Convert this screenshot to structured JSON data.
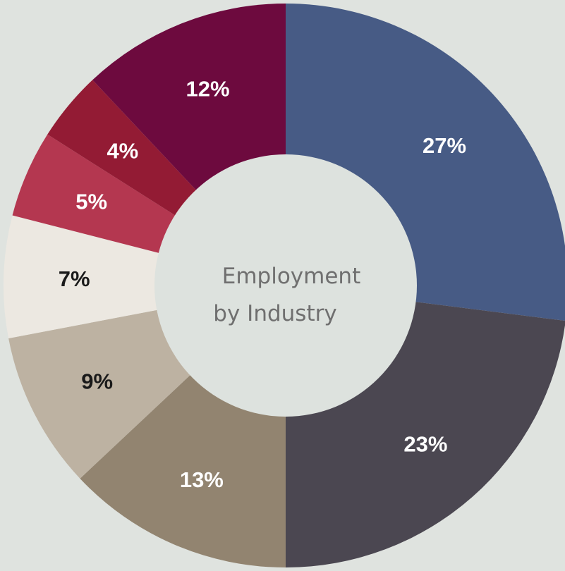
{
  "chart_data": {
    "type": "pie",
    "donut": true,
    "center_label": [
      "Employment",
      "by Industry"
    ],
    "slices": [
      {
        "value": 27,
        "label": "27%",
        "color": "#475b85",
        "label_color": "#ffffff"
      },
      {
        "value": 23,
        "label": "23%",
        "color": "#4b4751",
        "label_color": "#ffffff"
      },
      {
        "value": 13,
        "label": "13%",
        "color": "#928470",
        "label_color": "#ffffff"
      },
      {
        "value": 9,
        "label": "9%",
        "color": "#bdb2a2",
        "label_color": "#1a1a1a"
      },
      {
        "value": 7,
        "label": "7%",
        "color": "#ece8e1",
        "label_color": "#1a1a1a"
      },
      {
        "value": 5,
        "label": "5%",
        "color": "#b43750",
        "label_color": "#ffffff"
      },
      {
        "value": 4,
        "label": "4%",
        "color": "#931b34",
        "label_color": "#ffffff"
      },
      {
        "value": 12,
        "label": "12%",
        "color": "#6d0a3e",
        "label_color": "#ffffff"
      }
    ],
    "colors": {
      "background": "#dfe3df",
      "center": "#dde2de"
    }
  }
}
